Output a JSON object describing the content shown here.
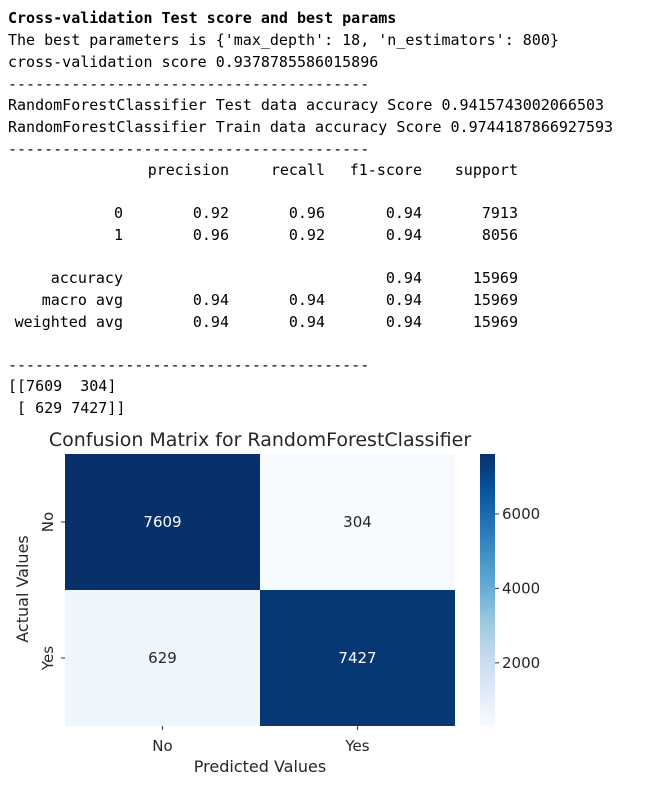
{
  "output": {
    "heading": "Cross-validation Test score and best params",
    "best_params_line": "The best parameters is {'max_depth': 18, 'n_estimators': 800}",
    "cv_score_line": "cross-validation score 0.9378785586015896",
    "separator": "----------------------------------------",
    "test_accuracy_line": "RandomForestClassifier Test data accuracy Score 0.9415743002066503",
    "train_accuracy_line": "RandomForestClassifier Train data accuracy Score 0.9744187866927593",
    "report": {
      "headers": [
        "precision",
        "recall",
        "f1-score",
        "support"
      ],
      "rows": [
        {
          "label": "0",
          "precision": "0.92",
          "recall": "0.96",
          "f1": "0.94",
          "support": "7913"
        },
        {
          "label": "1",
          "precision": "0.96",
          "recall": "0.92",
          "f1": "0.94",
          "support": "8056"
        },
        {
          "label": "accuracy",
          "precision": "",
          "recall": "",
          "f1": "0.94",
          "support": "15969"
        },
        {
          "label": "macro avg",
          "precision": "0.94",
          "recall": "0.94",
          "f1": "0.94",
          "support": "15969"
        },
        {
          "label": "weighted avg",
          "precision": "0.94",
          "recall": "0.94",
          "f1": "0.94",
          "support": "15969"
        }
      ]
    },
    "matrix_line_1": "[[7609  304]",
    "matrix_line_2": " [ 629 7427]]"
  },
  "chart_data": {
    "type": "heatmap",
    "title": "Confusion Matrix for RandomForestClassifier",
    "xlabel": "Predicted Values",
    "ylabel": "Actual Values",
    "x_categories": [
      "No",
      "Yes"
    ],
    "y_categories": [
      "No",
      "Yes"
    ],
    "values": [
      [
        7609,
        304
      ],
      [
        629,
        7427
      ]
    ],
    "colormap": "Blues",
    "colorbar_ticks": [
      2000,
      4000,
      6000
    ],
    "colorbar_range": [
      304,
      7609
    ],
    "colors": {
      "low": "#f7fbff",
      "high": "#08306b"
    }
  }
}
